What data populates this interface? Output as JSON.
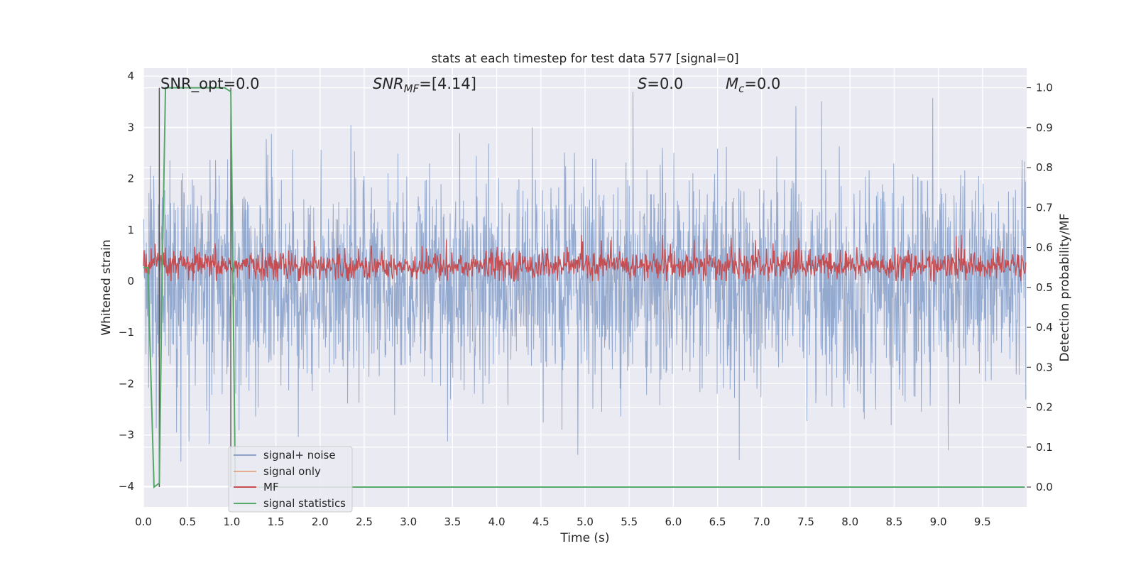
{
  "chart_data": {
    "type": "line",
    "title": "stats at each timestep for test data 577 [signal=0]",
    "xlabel": "Time (s)",
    "ylabel": "Whitened strain",
    "y2label": "Detection probability/MF",
    "xlim": [
      0,
      10
    ],
    "ylim": [
      -4.4,
      4.15
    ],
    "y2lim": [
      -0.045,
      1.04
    ],
    "xticks": [
      "0.0",
      "0.5",
      "1.0",
      "1.5",
      "2.0",
      "2.5",
      "3.0",
      "3.5",
      "4.0",
      "4.5",
      "5.0",
      "5.5",
      "6.0",
      "6.5",
      "7.0",
      "7.5",
      "8.0",
      "8.5",
      "9.0",
      "9.5"
    ],
    "yticks": [
      "4",
      "3",
      "2",
      "1",
      "0",
      "−1",
      "−2",
      "−3",
      "−4"
    ],
    "y2ticks": [
      "1.0",
      "0.9",
      "0.8",
      "0.7",
      "0.6",
      "0.5",
      "0.4",
      "0.3",
      "0.2",
      "0.1",
      "0.0"
    ],
    "grid": true,
    "legend_position": "lower-left",
    "annotations": {
      "snr_opt": "SNR_opt=0.0",
      "snr_mf_base": "SNR",
      "snr_mf_sub": "MF",
      "snr_mf_value": "=[4.14]",
      "s_symbol": "S",
      "s_value": "=0.0",
      "mc_base": "M",
      "mc_sub": "c",
      "mc_value": "=0.0"
    },
    "series": [
      {
        "name": "signal+ noise",
        "color": "#4c72b0",
        "axis": "left",
        "kind": "noise",
        "approx_range": [
          -4.0,
          3.8
        ]
      },
      {
        "name": "signal only",
        "color": "#dd8452",
        "axis": "left",
        "kind": "flat",
        "values_y": 0.0
      },
      {
        "name": "MF",
        "color": "#c44e52",
        "axis": "left",
        "kind": "noise",
        "approx_range": [
          0.0,
          0.9
        ]
      },
      {
        "name": "signal statistics",
        "color": "#55a868",
        "axis": "right",
        "x": [
          0.0,
          0.05,
          0.12,
          0.18,
          0.21,
          0.25,
          0.92,
          0.99,
          1.04,
          1.1,
          9.98
        ],
        "values": [
          0.55,
          0.55,
          0.0,
          0.01,
          0.5,
          1.0,
          1.0,
          0.99,
          0.0,
          0.0,
          0.0
        ]
      }
    ],
    "vertical_markers": [
      0.18,
      0.99
    ]
  }
}
